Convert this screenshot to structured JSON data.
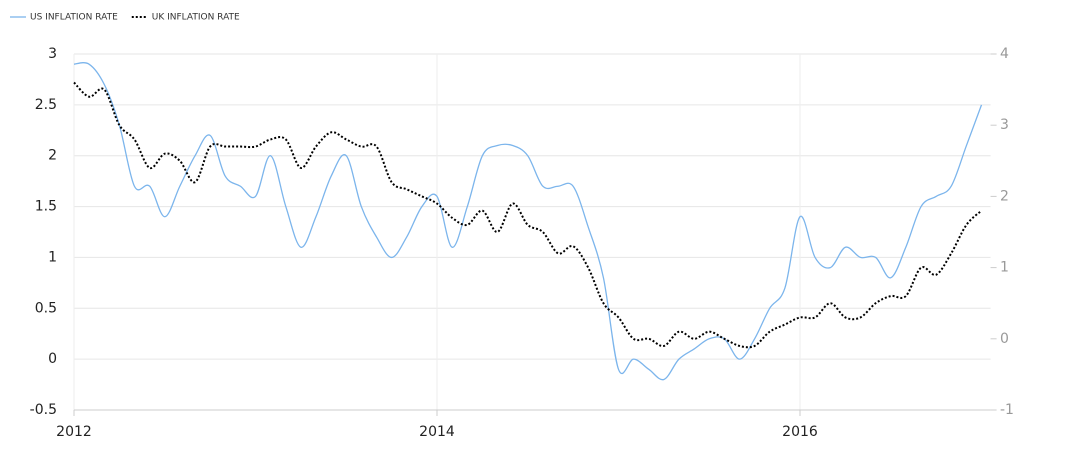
{
  "chart_data": {
    "type": "line",
    "x": [
      2012,
      2012.083,
      2012.167,
      2012.25,
      2012.333,
      2012.417,
      2012.5,
      2012.583,
      2012.667,
      2012.75,
      2012.833,
      2012.917,
      2013,
      2013.083,
      2013.167,
      2013.25,
      2013.333,
      2013.417,
      2013.5,
      2013.583,
      2013.667,
      2013.75,
      2013.833,
      2013.917,
      2014,
      2014.083,
      2014.167,
      2014.25,
      2014.333,
      2014.417,
      2014.5,
      2014.583,
      2014.667,
      2014.75,
      2014.833,
      2014.917,
      2015,
      2015.083,
      2015.167,
      2015.25,
      2015.333,
      2015.417,
      2015.5,
      2015.583,
      2015.667,
      2015.75,
      2015.833,
      2015.917,
      2016,
      2016.083,
      2016.167,
      2016.25,
      2016.333,
      2016.417,
      2016.5,
      2016.583,
      2016.667,
      2016.75,
      2016.833,
      2016.917,
      2017
    ],
    "series": [
      {
        "name": "US INFLATION RATE",
        "color": "#7cb5ec",
        "line_style": "solid",
        "values": [
          2.9,
          2.9,
          2.7,
          2.3,
          1.7,
          1.7,
          1.4,
          1.7,
          2.0,
          2.2,
          1.8,
          1.7,
          1.6,
          2.0,
          1.5,
          1.1,
          1.4,
          1.8,
          2.0,
          1.5,
          1.2,
          1.0,
          1.2,
          1.5,
          1.6,
          1.1,
          1.5,
          2.0,
          2.1,
          2.1,
          2.0,
          1.7,
          1.7,
          1.7,
          1.3,
          0.8,
          -0.1,
          0.0,
          -0.1,
          -0.2,
          0.0,
          0.1,
          0.2,
          0.2,
          0.0,
          0.2,
          0.5,
          0.7,
          1.4,
          1.0,
          0.9,
          1.1,
          1.0,
          1.0,
          0.8,
          1.1,
          1.5,
          1.6,
          1.7,
          2.1,
          2.5
        ]
      },
      {
        "name": "UK INFLATION RATE",
        "color": "#000000",
        "line_style": "dotted",
        "axis": "y2",
        "values": [
          3.6,
          3.4,
          3.5,
          3.0,
          2.8,
          2.4,
          2.6,
          2.5,
          2.2,
          2.7,
          2.7,
          2.7,
          2.7,
          2.8,
          2.8,
          2.4,
          2.7,
          2.9,
          2.8,
          2.7,
          2.7,
          2.2,
          2.1,
          2.0,
          1.9,
          1.7,
          1.6,
          1.8,
          1.5,
          1.9,
          1.6,
          1.5,
          1.2,
          1.3,
          1.0,
          0.5,
          0.3,
          0.0,
          0.0,
          -0.1,
          0.1,
          0.0,
          0.1,
          0.0,
          -0.1,
          -0.1,
          0.1,
          0.2,
          0.3,
          0.3,
          0.5,
          0.3,
          0.3,
          0.5,
          0.6,
          0.6,
          1.0,
          0.9,
          1.2,
          1.6,
          1.8
        ]
      }
    ],
    "xlim": [
      2012,
      2017.05
    ],
    "xticks": [
      2012,
      2014,
      2016
    ],
    "ylim": [
      -0.5,
      3
    ],
    "yticks": [
      -0.5,
      0,
      0.5,
      1,
      1.5,
      2,
      2.5,
      3
    ],
    "y2lim": [
      -1,
      4
    ],
    "y2ticks": [
      -1,
      0,
      1,
      2,
      3,
      4
    ],
    "grid": true,
    "legend": "top-left"
  }
}
